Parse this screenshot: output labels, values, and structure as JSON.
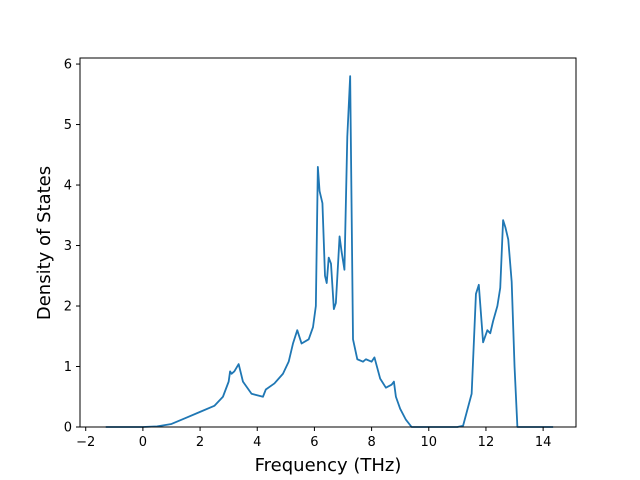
{
  "chart_data": {
    "type": "line",
    "title": "",
    "xlabel": "Frequency (THz)",
    "ylabel": "Density of States",
    "xlim": [
      -2.2,
      15.15
    ],
    "ylim": [
      0,
      6.1
    ],
    "xticks": [
      -2,
      0,
      2,
      4,
      6,
      8,
      10,
      12,
      14
    ],
    "yticks": [
      0,
      1,
      2,
      3,
      4,
      5,
      6
    ],
    "xtick_labels": [
      "−2",
      "0",
      "2",
      "4",
      "6",
      "8",
      "10",
      "12",
      "14"
    ],
    "ytick_labels": [
      "0",
      "1",
      "2",
      "3",
      "4",
      "5",
      "6"
    ],
    "grid": false,
    "line_color": "#1f77b4",
    "series": [
      {
        "x": [
          -1.3,
          0.0,
          0.5,
          1.0,
          1.5,
          2.0,
          2.5,
          2.8,
          3.0,
          3.05,
          3.1,
          3.2,
          3.35,
          3.5,
          3.8,
          4.2,
          4.3,
          4.6,
          4.9,
          5.1,
          5.25,
          5.4,
          5.55,
          5.8,
          5.95,
          6.05,
          6.12,
          6.18,
          6.28,
          6.37,
          6.43,
          6.5,
          6.58,
          6.68,
          6.75,
          6.88,
          6.95,
          7.05,
          7.15,
          7.25,
          7.35,
          7.5,
          7.7,
          7.8,
          8.0,
          8.1,
          8.3,
          8.5,
          8.7,
          8.78,
          8.85,
          9.0,
          9.2,
          9.4,
          10.0,
          11.0,
          11.2,
          11.5,
          11.65,
          11.75,
          11.9,
          12.05,
          12.15,
          12.25,
          12.4,
          12.5,
          12.6,
          12.68,
          12.78,
          12.9,
          13.0,
          13.1,
          13.5,
          14.35
        ],
        "y": [
          0.0,
          0.0,
          0.01,
          0.05,
          0.15,
          0.25,
          0.35,
          0.5,
          0.75,
          0.92,
          0.88,
          0.92,
          1.04,
          0.75,
          0.55,
          0.5,
          0.62,
          0.72,
          0.88,
          1.08,
          1.38,
          1.6,
          1.38,
          1.45,
          1.65,
          2.0,
          4.3,
          3.9,
          3.7,
          2.5,
          2.38,
          2.8,
          2.7,
          1.95,
          2.05,
          3.15,
          2.9,
          2.6,
          4.8,
          5.8,
          1.45,
          1.12,
          1.08,
          1.12,
          1.08,
          1.15,
          0.8,
          0.65,
          0.7,
          0.75,
          0.5,
          0.3,
          0.12,
          0.0,
          0.0,
          0.0,
          0.02,
          0.55,
          2.2,
          2.35,
          1.4,
          1.6,
          1.55,
          1.75,
          2.0,
          2.3,
          3.42,
          3.3,
          3.1,
          2.4,
          1.0,
          0.0,
          0.0,
          0.0
        ]
      }
    ]
  }
}
